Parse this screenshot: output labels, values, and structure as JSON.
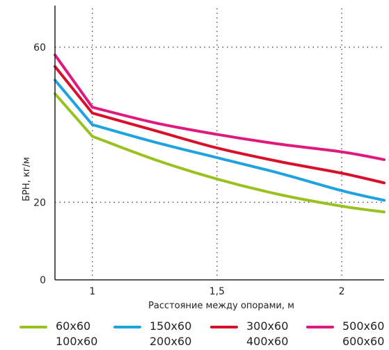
{
  "chart_data": {
    "type": "line",
    "title": "",
    "xlabel": "Расстояние между опорами, м",
    "ylabel": "БРН, кг/м",
    "xlim": [
      0.85,
      2.17
    ],
    "ylim": [
      0,
      70
    ],
    "x_ticks": [
      1,
      1.5,
      2
    ],
    "x_tick_labels": [
      "1",
      "1,5",
      "2"
    ],
    "y_ticks": [
      0,
      20,
      60
    ],
    "y_tick_labels": [
      "0",
      "20",
      "60"
    ],
    "grid": "dotted",
    "legend_position": "bottom",
    "x": [
      0.85,
      1.0,
      1.25,
      1.5,
      1.75,
      2.0,
      2.17
    ],
    "series": [
      {
        "name": "60x60 100x60",
        "color": "#99c221",
        "values": [
          48.0,
          37.0,
          31.0,
          26.0,
          22.0,
          19.0,
          17.5
        ]
      },
      {
        "name": "150x60 200x60",
        "color": "#1fa3e0",
        "values": [
          51.5,
          40.0,
          35.5,
          31.5,
          27.5,
          23.0,
          20.5
        ]
      },
      {
        "name": "300x60 400x60",
        "color": "#d8102a",
        "values": [
          55.0,
          43.0,
          38.5,
          34.0,
          30.5,
          27.5,
          25.0
        ]
      },
      {
        "name": "500x60 600x60",
        "color": "#e0197f",
        "values": [
          58.0,
          44.5,
          40.5,
          37.5,
          35.0,
          33.0,
          31.0
        ]
      }
    ]
  },
  "legend": [
    {
      "line1": "60x60",
      "line2": "100x60",
      "color": "#99c221"
    },
    {
      "line1": "150x60",
      "line2": "200x60",
      "color": "#1fa3e0"
    },
    {
      "line1": "300x60",
      "line2": "400x60",
      "color": "#d8102a"
    },
    {
      "line1": "500x60",
      "line2": "600x60",
      "color": "#e0197f"
    }
  ]
}
